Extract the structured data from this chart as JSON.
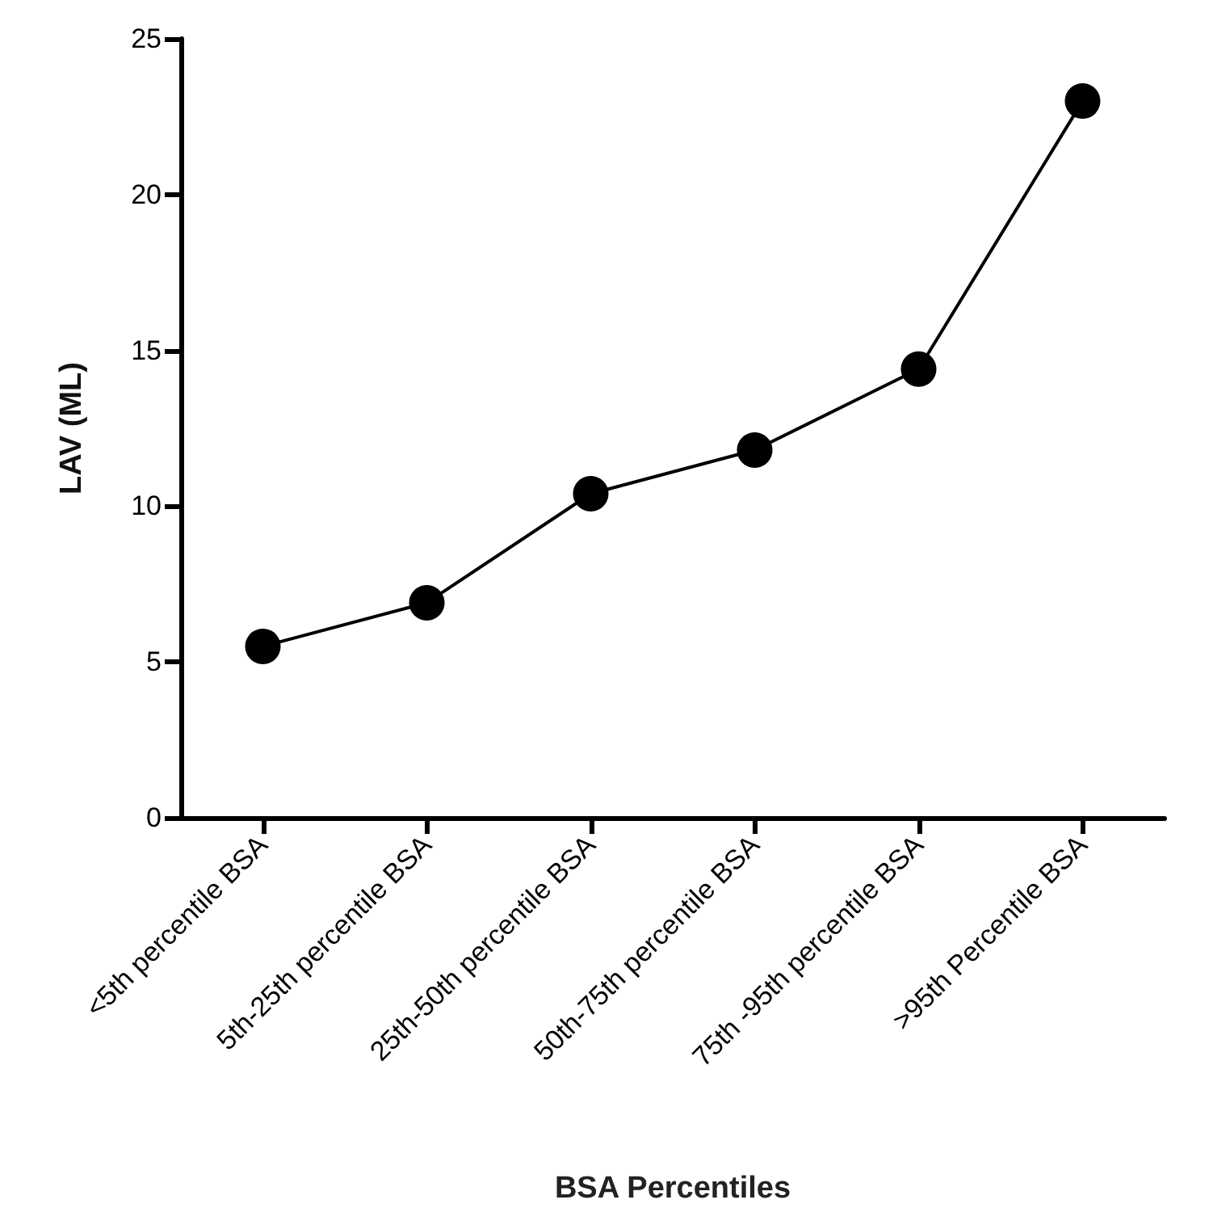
{
  "chart_data": {
    "type": "line",
    "xlabel": "BSA Percentiles",
    "ylabel": "LAV (ML)",
    "categories": [
      "<5th percentile BSA",
      "5th-25th percentile BSA",
      "25th-50th percentile BSA",
      "50th-75th percentile BSA",
      "75th -95th percentile BSA",
      ">95th Percentile BSA"
    ],
    "series": [
      {
        "color": "#000000",
        "values": [
          5.5,
          6.9,
          10.4,
          11.8,
          14.4,
          23.0
        ]
      }
    ],
    "ylim": [
      0,
      25
    ],
    "yticks": [
      0,
      5,
      10,
      15,
      20,
      25
    ],
    "marker": "circle",
    "line_style": "solid"
  }
}
